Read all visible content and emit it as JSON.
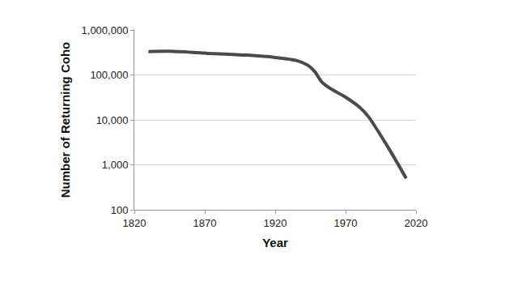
{
  "chart_data": {
    "type": "line",
    "x_label": "Year",
    "y_label": "Number of Returning Coho",
    "x": [
      1830,
      1845,
      1870,
      1900,
      1920,
      1935,
      1943,
      1948,
      1953,
      1960,
      1970,
      1980,
      1986,
      2000,
      2013
    ],
    "values": [
      330000,
      335000,
      305000,
      275000,
      245000,
      210000,
      165000,
      120000,
      70000,
      48000,
      32000,
      19000,
      12000,
      2500,
      500
    ],
    "color": "#4a4a4a",
    "log": "y",
    "grid": true,
    "xlim": [
      1820,
      2020
    ],
    "xticks": [
      1820,
      1870,
      1920,
      1970,
      2020
    ],
    "ylim": [
      100,
      1000000
    ],
    "yticks": [
      100,
      {
        "value": 1000,
        "label": "1,000"
      },
      {
        "value": 10000,
        "label": "10,000"
      },
      {
        "value": 100000,
        "label": "100,000"
      },
      {
        "value": 1000000,
        "label": "1,000,000"
      }
    ]
  }
}
